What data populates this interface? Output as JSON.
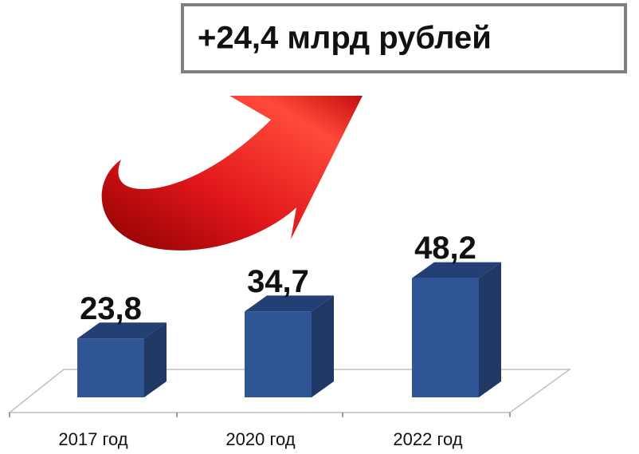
{
  "chart_data": {
    "type": "bar3d",
    "annotation": "+24,4 млрд рублей",
    "categories": [
      "2017 год",
      "2020 год",
      "2022 год"
    ],
    "values": [
      23.8,
      34.7,
      48.2
    ],
    "value_labels": [
      "23,8",
      "34,7",
      "48,2"
    ],
    "color": "#2f5597"
  }
}
